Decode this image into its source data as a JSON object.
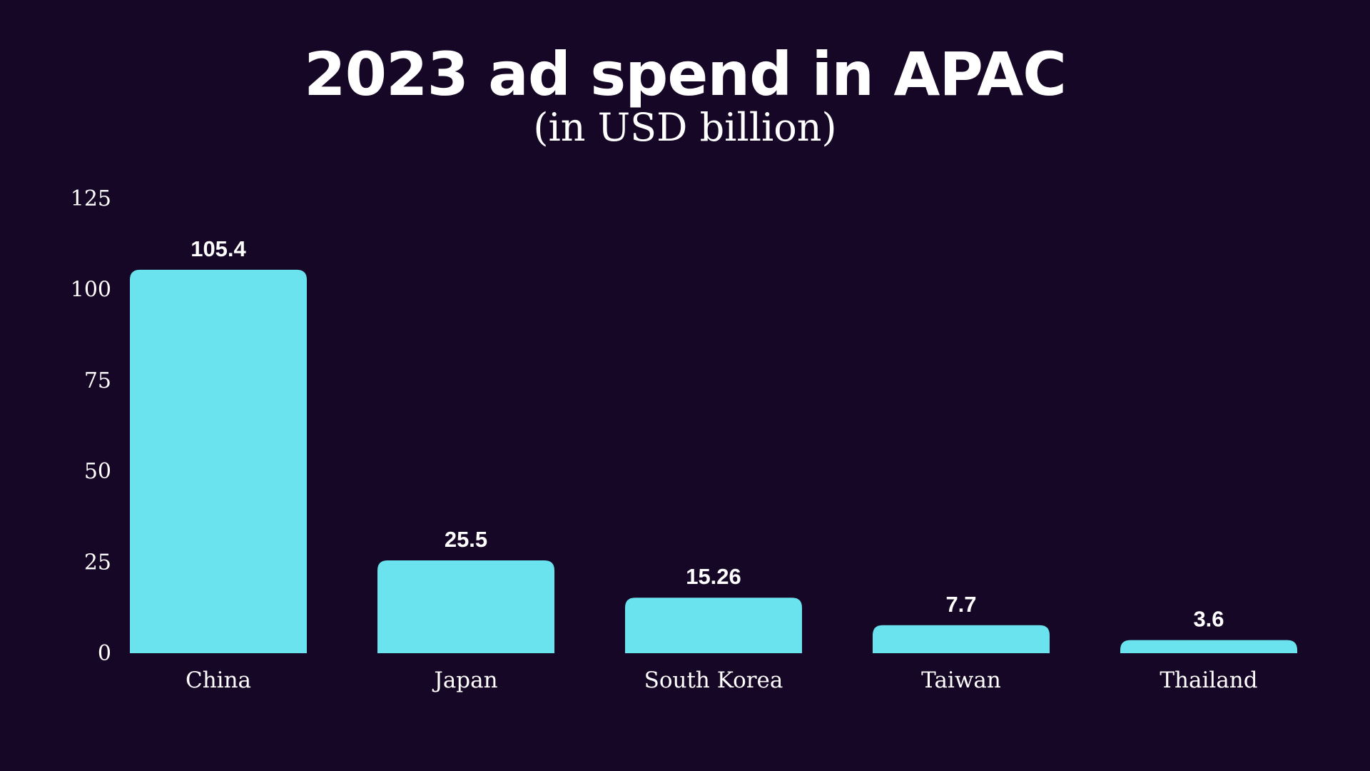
{
  "chart_data": {
    "type": "bar",
    "title": "2023 ad spend in APAC",
    "subtitle": "(in USD billion)",
    "categories": [
      "China",
      "Japan",
      "South Korea",
      "Taiwan",
      "Thailand"
    ],
    "values": [
      105.4,
      25.5,
      15.26,
      7.7,
      3.6
    ],
    "value_labels": [
      "105.4",
      "25.5",
      "15.26",
      "7.7",
      "3.6"
    ],
    "yticks": [
      0,
      25,
      50,
      75,
      100,
      125
    ],
    "ylim": [
      0,
      125
    ],
    "xlabel": "",
    "ylabel": "",
    "grid": false,
    "legend": "none",
    "colors": {
      "background": "#170726",
      "bar": "#6be3ee",
      "text": "#ffffff"
    }
  }
}
